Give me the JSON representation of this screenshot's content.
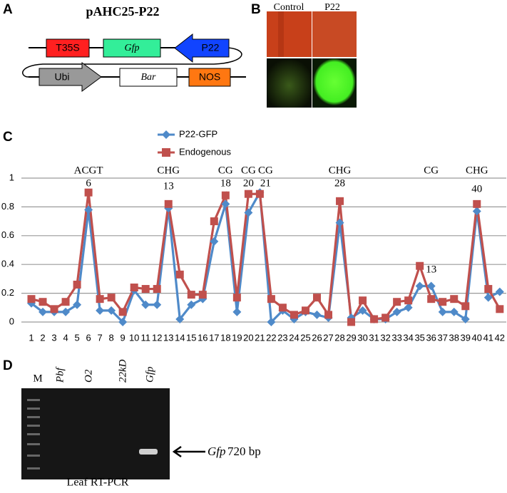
{
  "panel_labels": [
    "A",
    "B",
    "C",
    "D"
  ],
  "plasmid": {
    "title": "pAHC25-P22",
    "top_row": [
      "T35S",
      "Gfp",
      "P22"
    ],
    "bottom_row": [
      "Ubi",
      "Bar",
      "NOS"
    ]
  },
  "photos": {
    "columns": [
      "Control",
      "P22"
    ]
  },
  "chart_data": {
    "type": "line",
    "categories": [
      "1",
      "2",
      "3",
      "4",
      "5",
      "6",
      "7",
      "8",
      "9",
      "10",
      "11",
      "12",
      "13",
      "14",
      "15",
      "16",
      "17",
      "18",
      "19",
      "20",
      "21",
      "22",
      "23",
      "24",
      "25",
      "26",
      "27",
      "28",
      "29",
      "30",
      "31",
      "32",
      "33",
      "34",
      "35",
      "36",
      "37",
      "38",
      "39",
      "40",
      "41",
      "42"
    ],
    "series": [
      {
        "name": "P22-GFP",
        "color": "#4f8ac9",
        "marker": "diamond",
        "values": [
          0.13,
          0.07,
          0.07,
          0.07,
          0.12,
          0.78,
          0.08,
          0.08,
          0.0,
          0.22,
          0.12,
          0.12,
          0.79,
          0.02,
          0.12,
          0.16,
          0.56,
          0.82,
          0.07,
          0.76,
          0.9,
          0.0,
          0.08,
          0.02,
          0.07,
          0.05,
          0.03,
          0.69,
          0.03,
          0.08,
          0.02,
          0.02,
          0.07,
          0.1,
          0.25,
          0.25,
          0.07,
          0.07,
          0.02,
          0.77,
          0.17,
          0.21
        ]
      },
      {
        "name": "Endogenous",
        "color": "#c0504d",
        "marker": "square",
        "values": [
          0.16,
          0.14,
          0.09,
          0.14,
          0.26,
          0.9,
          0.16,
          0.17,
          0.07,
          0.24,
          0.23,
          0.23,
          0.82,
          0.33,
          0.19,
          0.19,
          0.7,
          0.88,
          0.17,
          0.89,
          0.89,
          0.16,
          0.1,
          0.05,
          0.08,
          0.17,
          0.05,
          0.84,
          0.0,
          0.15,
          0.02,
          0.03,
          0.14,
          0.15,
          0.39,
          0.16,
          0.14,
          0.16,
          0.11,
          0.82,
          0.23,
          0.09
        ]
      }
    ],
    "ylim": [
      0,
      1
    ],
    "yticks": [
      0,
      0.2,
      0.4,
      0.6,
      0.8,
      1
    ],
    "grid": true,
    "legend": "top",
    "annotations": [
      {
        "text": "ACGT",
        "x": 6,
        "y": 1.05
      },
      {
        "text": "6",
        "x": 6,
        "y": 0.96
      },
      {
        "text": "CHG",
        "x": 13,
        "y": 1.05
      },
      {
        "text": "13",
        "x": 13,
        "y": 0.94
      },
      {
        "text": "CG",
        "x": 18,
        "y": 1.05
      },
      {
        "text": "18",
        "x": 18,
        "y": 0.96
      },
      {
        "text": "CG",
        "x": 20,
        "y": 1.05
      },
      {
        "text": "20",
        "x": 20,
        "y": 0.96
      },
      {
        "text": "CG",
        "x": 21.5,
        "y": 1.05
      },
      {
        "text": "21",
        "x": 21.5,
        "y": 0.96
      },
      {
        "text": "CHG",
        "x": 28,
        "y": 1.05
      },
      {
        "text": "28",
        "x": 28,
        "y": 0.96
      },
      {
        "text": "CG",
        "x": 36,
        "y": 1.05
      },
      {
        "text": "13",
        "x": 36,
        "y": 0.36
      },
      {
        "text": "CHG",
        "x": 40,
        "y": 1.05
      },
      {
        "text": "40",
        "x": 40,
        "y": 0.92
      }
    ]
  },
  "gel": {
    "lanes": [
      "M",
      "Pbf",
      "O2",
      "22kD",
      "Gfp"
    ],
    "band_gene": "Gfp",
    "band_size": "720 bp",
    "caption": "Leaf RT-PCR"
  }
}
